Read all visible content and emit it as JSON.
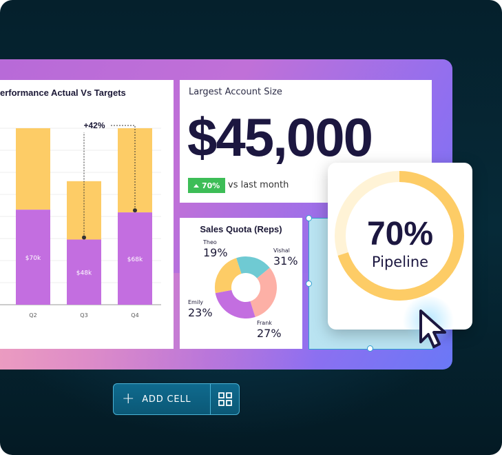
{
  "bar_chart": {
    "title": "erformance Actual Vs Targets",
    "annotation": "+42%"
  },
  "chart_data": {
    "type": "bar",
    "title": "erformance Actual Vs Targets",
    "categories": [
      "Q2",
      "Q3",
      "Q4"
    ],
    "series": [
      {
        "values": [
          70,
          48,
          68
        ]
      },
      {
        "values": [
          130,
          91,
          130
        ]
      }
    ],
    "data_labels": [
      "$70k",
      "$48k",
      "$68k"
    ],
    "colors": {
      "actual": "#c36ee0",
      "target": "#fdcc66"
    },
    "grid": true,
    "ylim": [
      0,
      130
    ]
  },
  "account": {
    "title": "Largest Account Size",
    "value": "$45,000",
    "delta": "70%",
    "delta_text": "vs last month",
    "delta_color": "#3dbd57"
  },
  "quota": {
    "title": "Sales Quota (Reps)",
    "slices": [
      {
        "name": "Theo",
        "pct": "19%",
        "value": 19,
        "color": "#6fcad3"
      },
      {
        "name": "Vishal",
        "pct": "31%",
        "value": 31,
        "color": "#fdb0a6"
      },
      {
        "name": "Frank",
        "pct": "27%",
        "value": 27,
        "color": "#c36ee0"
      },
      {
        "name": "Emily",
        "pct": "23%",
        "value": 23,
        "color": "#fdcc66"
      }
    ]
  },
  "pipeline": {
    "percent": "70%",
    "label": "Pipeline",
    "fill": 0.7,
    "color": "#fdcc66",
    "track_color": "#fff3d6"
  },
  "toolbar": {
    "add_cell_label": "ADD CELL",
    "add_icon": "plus-icon",
    "grid_icon": "grid-icon"
  },
  "colors": {
    "accent": "#c070d8",
    "dark_text": "#1c1740"
  }
}
